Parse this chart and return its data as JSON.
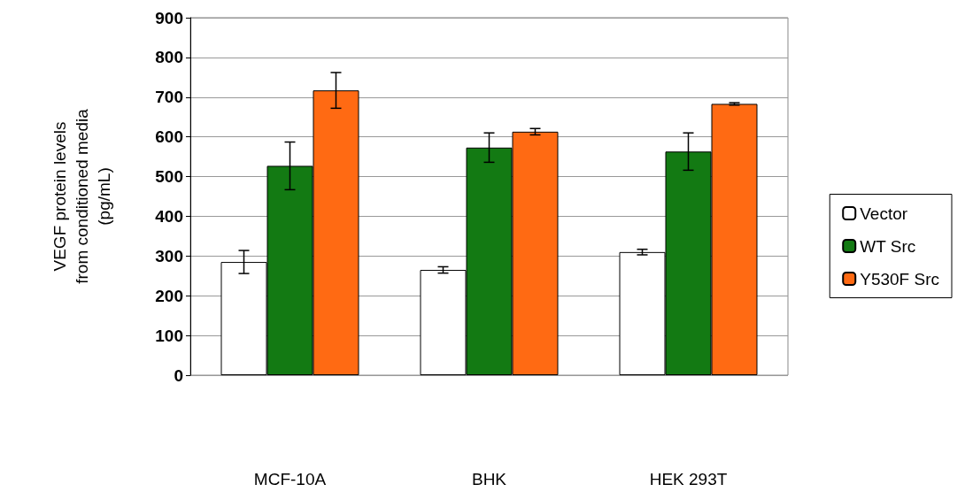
{
  "chart_data": {
    "type": "bar",
    "ylabel": "VEGF protein levels\nfrom conditioned media\n(pg/mL)",
    "categories": [
      "MCF-10A",
      "BHK",
      "HEK 293T"
    ],
    "series": [
      {
        "name": "Vector",
        "color": "#ffffff",
        "values": [
          285,
          265,
          310
        ],
        "errors": [
          29,
          8,
          7
        ]
      },
      {
        "name": "WT Src",
        "color": "#137a13",
        "values": [
          527,
          573,
          563
        ],
        "errors": [
          60,
          37,
          47
        ]
      },
      {
        "name": "Y530F Src",
        "color": "#ff6a13",
        "values": [
          717,
          613,
          683
        ],
        "errors": [
          45,
          8,
          3
        ]
      }
    ],
    "ylim": [
      0,
      900
    ],
    "yticks": [
      0,
      100,
      200,
      300,
      400,
      500,
      600,
      700,
      800,
      900
    ],
    "grid": "y",
    "legend": "right"
  }
}
